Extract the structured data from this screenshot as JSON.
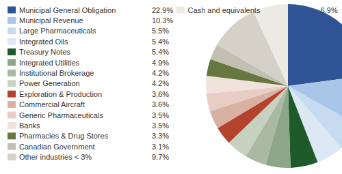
{
  "chart_data": {
    "type": "pie",
    "categories": [
      "Municipal General Obligation",
      "Municipal Revenue",
      "Large Pharmaceuticals",
      "Integrated Oils",
      "Treasury Notes",
      "Integrated Utilities",
      "Institutional Brokerage",
      "Power Generation",
      "Exploration & Production",
      "Commercial Aircraft",
      "Generic Pharmaceuticals",
      "Banks",
      "Pharmacies & Drug Stores",
      "Canadian Government",
      "Other industries < 3%",
      "Cash and equivalents"
    ],
    "values": [
      22.9,
      10.3,
      5.5,
      5.4,
      5.4,
      4.9,
      4.2,
      4.2,
      3.6,
      3.6,
      3.5,
      3.5,
      3.3,
      3.1,
      9.7,
      6.9
    ],
    "value_labels": [
      "22.9%",
      "10.3%",
      "5.5%",
      "5.4%",
      "5.4%",
      "4.9%",
      "4.2%",
      "4.2%",
      "3.6%",
      "3.6%",
      "3.5%",
      "3.5%",
      "3.3%",
      "3.1%",
      "9.7%",
      "6.9%"
    ],
    "colors": [
      "#2f5597",
      "#a9c6e8",
      "#c6daf0",
      "#dde8f5",
      "#1f5a2a",
      "#8da688",
      "#a9b9a2",
      "#c6d1bf",
      "#b4432d",
      "#d8b1a3",
      "#e7cdc3",
      "#f2e2dc",
      "#66783f",
      "#c2c0b2",
      "#d4d2c8",
      "#ebeae3"
    ],
    "legend": "left"
  }
}
